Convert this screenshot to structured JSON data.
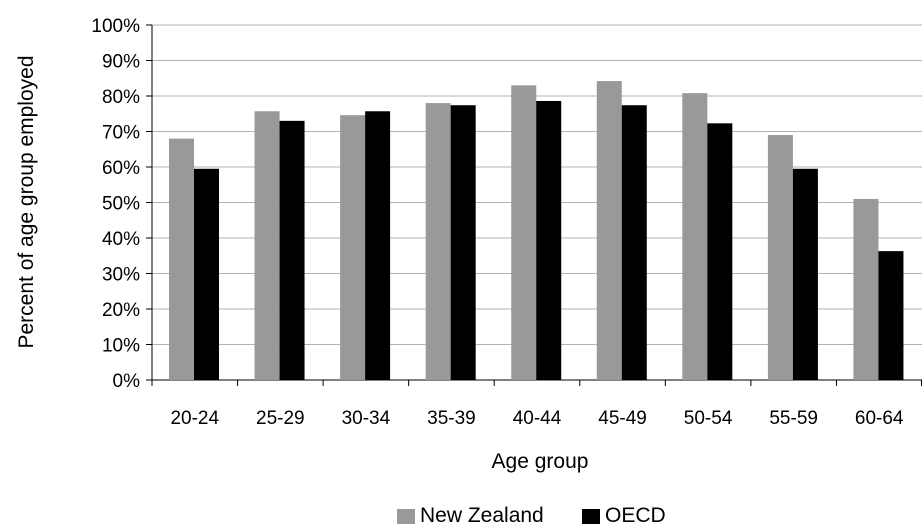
{
  "chart_data": {
    "type": "bar",
    "title": "",
    "xlabel": "Age group",
    "ylabel": "Percent of age group employed",
    "categories": [
      "20-24",
      "25-29",
      "30-34",
      "35-39",
      "40-44",
      "45-49",
      "50-54",
      "55-59",
      "60-64"
    ],
    "series": [
      {
        "name": "New Zealand",
        "color": "#999999",
        "values": [
          68,
          75.7,
          74.6,
          78,
          83,
          84.2,
          80.8,
          69,
          51
        ]
      },
      {
        "name": "OECD",
        "color": "#000000",
        "values": [
          59.5,
          73,
          75.7,
          77.4,
          78.6,
          77.4,
          72.3,
          59.5,
          36.3
        ]
      }
    ],
    "ylim": [
      0,
      100
    ],
    "yticks": [
      "0%",
      "10%",
      "20%",
      "30%",
      "40%",
      "50%",
      "60%",
      "70%",
      "80%",
      "90%",
      "100%"
    ],
    "ytick_values": [
      0,
      10,
      20,
      30,
      40,
      50,
      60,
      70,
      80,
      90,
      100
    ],
    "grid": true,
    "legend_position": "bottom"
  }
}
